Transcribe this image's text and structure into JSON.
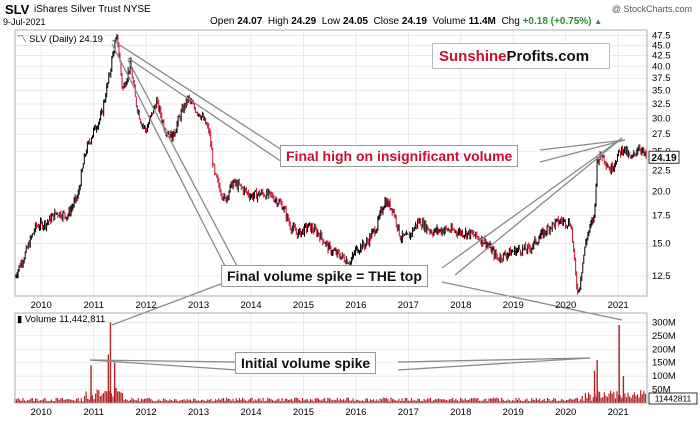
{
  "header": {
    "symbol": "SLV",
    "name": "iShares Silver Trust",
    "exchange": "NYSE",
    "date": "9-Jul-2021",
    "open_label": "Open",
    "open": "24.07",
    "high_label": "High",
    "high": "24.29",
    "low_label": "Low",
    "low": "24.05",
    "close_label": "Close",
    "close": "24.19",
    "volume_label": "Volume",
    "volume": "11.4M",
    "chg_label": "Chg",
    "chg": "+0.18 (+0.75%)",
    "credit": "@ StockCharts.com"
  },
  "brand": {
    "part1": "Sunshine",
    "part2": "Profits.com"
  },
  "price_label": "SLV (Daily) 24.19",
  "volume_panel_label": "Volume 11,442,811",
  "annotations": {
    "final_high": "Final high on insignificant volume",
    "final_spike": "Final volume spike = THE top",
    "initial_spike": "Initial volume spike"
  },
  "colors": {
    "up": "#000000",
    "down": "#c8102e",
    "volume": "#b22222",
    "grid": "#e3e3e3",
    "callout_line": "#8a8a8a"
  },
  "chart_data": {
    "type": "line",
    "price_panel": {
      "scale": "log",
      "y_ticks": [
        12.5,
        15.0,
        17.5,
        20.0,
        22.5,
        25.0,
        27.5,
        30.0,
        32.5,
        35.0,
        37.5,
        40.0,
        42.5,
        45.0,
        47.5
      ],
      "ylim": [
        11.2,
        49
      ],
      "last_value": "24.19",
      "x": [
        2009.5,
        2009.7,
        2009.9,
        2010.1,
        2010.3,
        2010.5,
        2010.7,
        2010.85,
        2011.0,
        2011.15,
        2011.3,
        2011.38,
        2011.45,
        2011.55,
        2011.65,
        2011.7,
        2011.8,
        2011.9,
        2012.0,
        2012.2,
        2012.35,
        2012.5,
        2012.65,
        2012.8,
        2012.9,
        2013.05,
        2013.2,
        2013.3,
        2013.4,
        2013.5,
        2013.65,
        2013.8,
        2014.0,
        2014.2,
        2014.4,
        2014.6,
        2014.75,
        2014.9,
        2015.1,
        2015.3,
        2015.5,
        2015.7,
        2015.9,
        2016.0,
        2016.2,
        2016.4,
        2016.55,
        2016.7,
        2016.85,
        2017.0,
        2017.2,
        2017.45,
        2017.7,
        2017.95,
        2018.2,
        2018.45,
        2018.7,
        2018.9,
        2019.1,
        2019.3,
        2019.5,
        2019.7,
        2019.9,
        2020.1,
        2020.2,
        2020.25,
        2020.4,
        2020.55,
        2020.6,
        2020.7,
        2020.85,
        2021.0,
        2021.1,
        2021.25,
        2021.4,
        2021.52
      ],
      "y": [
        12.5,
        14.2,
        16.5,
        16.8,
        17.8,
        17.5,
        19.5,
        25.0,
        28.0,
        30.5,
        38.0,
        44.0,
        47.0,
        35.0,
        38.5,
        40.5,
        33.0,
        29.5,
        28.0,
        33.0,
        28.5,
        27.0,
        30.5,
        33.5,
        32.0,
        30.5,
        28.0,
        22.0,
        20.5,
        19.0,
        21.0,
        20.5,
        19.5,
        19.8,
        19.5,
        18.5,
        16.5,
        15.8,
        16.5,
        15.8,
        14.5,
        14.0,
        13.5,
        14.5,
        15.0,
        16.5,
        19.0,
        18.2,
        15.5,
        15.5,
        17.0,
        16.0,
        16.2,
        16.0,
        15.8,
        15.2,
        13.8,
        14.2,
        14.5,
        14.5,
        15.5,
        16.5,
        17.0,
        16.8,
        12.0,
        11.5,
        15.5,
        17.5,
        24.0,
        24.5,
        22.5,
        24.5,
        25.5,
        23.8,
        25.8,
        24.19
      ]
    },
    "x_tick_labels": [
      "2010",
      "2011",
      "2012",
      "2013",
      "2014",
      "2015",
      "2016",
      "2017",
      "2018",
      "2019",
      "2020",
      "2021"
    ],
    "volume_panel": {
      "y_ticks": [
        "50M",
        "100M",
        "150M",
        "200M",
        "250M",
        "300M"
      ],
      "ylim": [
        0,
        320
      ],
      "unit": "M",
      "last_value": "11442811",
      "spikes": [
        {
          "x": 2011.32,
          "v": 300
        },
        {
          "x": 2011.28,
          "v": 180
        },
        {
          "x": 2011.4,
          "v": 150
        },
        {
          "x": 2010.95,
          "v": 140
        },
        {
          "x": 2020.55,
          "v": 120
        },
        {
          "x": 2020.6,
          "v": 160
        },
        {
          "x": 2021.02,
          "v": 290
        },
        {
          "x": 2021.1,
          "v": 100
        }
      ]
    }
  }
}
